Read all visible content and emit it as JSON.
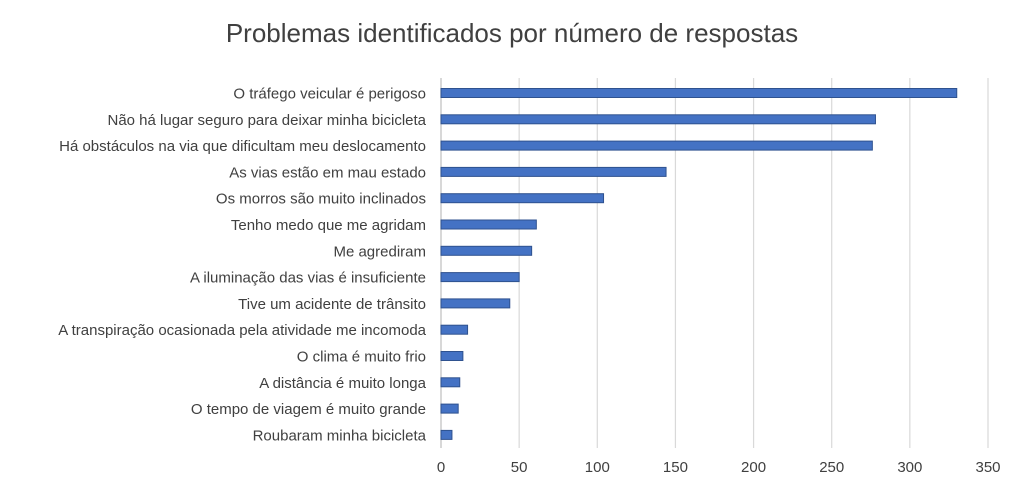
{
  "chart_data": {
    "type": "bar",
    "orientation": "horizontal",
    "title": "Problemas identificados por número de respostas",
    "xlabel": "",
    "ylabel": "",
    "categories": [
      "O tráfego veicular é perigoso",
      "Não há lugar seguro para deixar minha bicicleta",
      "Há obstáculos na via que dificultam meu deslocamento",
      "As vias estão em mau estado",
      "Os morros são muito inclinados",
      "Tenho medo que me agridam",
      "Me agrediram",
      "A iluminação das vias é insuficiente",
      "Tive um acidente de trânsito",
      "A transpiração ocasionada pela atividade me incomoda",
      "O clima é muito frio",
      "A distância é muito longa",
      "O tempo de viagem é muito grande",
      "Roubaram minha bicicleta"
    ],
    "values": [
      330,
      278,
      276,
      144,
      104,
      61,
      58,
      50,
      44,
      17,
      14,
      12,
      11,
      7
    ],
    "xlim": [
      0,
      350
    ],
    "xticks": [
      0,
      50,
      100,
      150,
      200,
      250,
      300,
      350
    ],
    "grid": "vertical",
    "legend": "none",
    "bar_color": "#4472C4",
    "bar_border": "#2F528F"
  }
}
